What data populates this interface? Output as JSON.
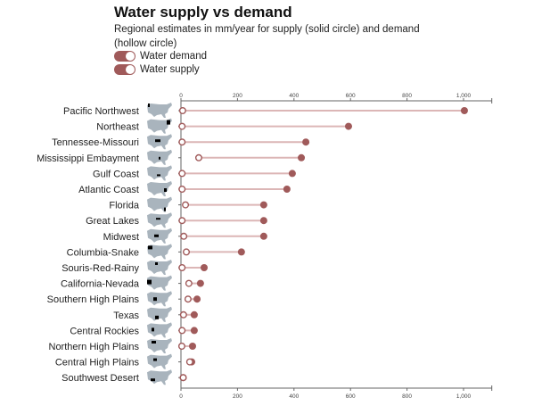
{
  "title": "Water supply vs demand",
  "subtitle": "Regional estimates in mm/year for supply (solid circle) and demand (hollow circle)",
  "legend": [
    {
      "label": "Water demand"
    },
    {
      "label": "Water supply"
    }
  ],
  "colors": {
    "marker": "#a05a5a",
    "line": "#dcb6b6",
    "map": "#a9b4bd",
    "highlight": "#000000"
  },
  "chart_data": {
    "type": "dumbbell",
    "xlim": [
      0,
      1100
    ],
    "ticks": [
      0,
      200,
      400,
      600,
      800,
      1000
    ],
    "tick_labels": [
      "0",
      "200",
      "400",
      "600",
      "800",
      "1,000"
    ],
    "categories": [
      "Pacific Northwest",
      "Northeast",
      "Tennessee-Missouri",
      "Mississippi Embayment",
      "Gulf Coast",
      "Atlantic Coast",
      "Florida",
      "Great Lakes",
      "Midwest",
      "Columbia-Snake",
      "Souris-Red-Rainy",
      "California-Nevada",
      "Southern High Plains",
      "Texas",
      "Central Rockies",
      "Northern High Plains",
      "Central High Plains",
      "Southwest Desert"
    ],
    "series": [
      {
        "name": "Water supply",
        "values": [
          1003,
          593,
          442,
          426,
          394,
          375,
          293,
          293,
          293,
          214,
          82,
          69,
          57,
          47,
          47,
          41,
          38,
          8
        ]
      },
      {
        "name": "Water demand",
        "values": [
          6,
          4,
          4,
          63,
          4,
          4,
          16,
          4,
          10,
          19,
          4,
          28,
          25,
          9,
          4,
          3,
          31,
          8
        ]
      }
    ]
  }
}
